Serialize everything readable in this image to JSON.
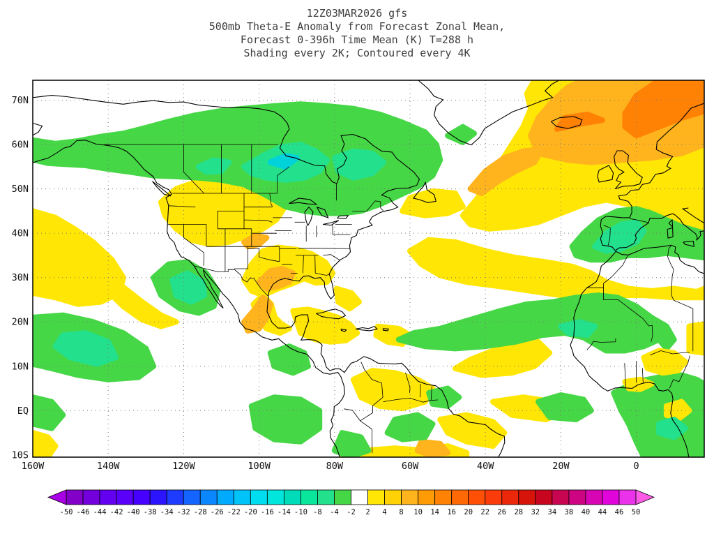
{
  "header": {
    "line1": "12Z03MAR2026 gfs",
    "line2": "500mb Theta-E Anomaly from Forecast Zonal Mean,",
    "line3": "Forecast 0-396h Time Mean (K) T=288 h",
    "line4": "Shading every 2K; Contoured every 4K"
  },
  "map": {
    "y_ticks": [
      {
        "lat": 70,
        "label": "70N"
      },
      {
        "lat": 60,
        "label": "60N"
      },
      {
        "lat": 50,
        "label": "50N"
      },
      {
        "lat": 40,
        "label": "40N"
      },
      {
        "lat": 30,
        "label": "30N"
      },
      {
        "lat": 20,
        "label": "20N"
      },
      {
        "lat": 10,
        "label": "10N"
      },
      {
        "lat": 0,
        "label": "EQ"
      },
      {
        "lat": -10,
        "label": "10S"
      }
    ],
    "x_ticks": [
      {
        "lon": -160,
        "label": "160W"
      },
      {
        "lon": -140,
        "label": "140W"
      },
      {
        "lon": -120,
        "label": "120W"
      },
      {
        "lon": -100,
        "label": "100W"
      },
      {
        "lon": -80,
        "label": "80W"
      },
      {
        "lon": -60,
        "label": "60W"
      },
      {
        "lon": -40,
        "label": "40W"
      },
      {
        "lon": -20,
        "label": "20W"
      },
      {
        "lon": 0,
        "label": "0"
      }
    ]
  },
  "map_colors": {
    "frame": "#000000",
    "grid": "#777777",
    "coast": "#000000",
    "text": "#111111",
    "title_text": "#3d3d3d"
  },
  "palette": {
    "yellow": "#ffe605",
    "orange": "#ffb41e",
    "dark_orange": "#ff8205",
    "green": "#46d746",
    "spring_green": "#23e08c",
    "cyan": "#00d2dc",
    "white": "#ffffff"
  },
  "colorbar": {
    "labels": [
      "-50",
      "-46",
      "-44",
      "-42",
      "-40",
      "-38",
      "-34",
      "-32",
      "-28",
      "-26",
      "-22",
      "-20",
      "-16",
      "-14",
      "-10",
      "-8",
      "-4",
      "-2",
      "2",
      "4",
      "8",
      "10",
      "14",
      "16",
      "20",
      "22",
      "26",
      "28",
      "32",
      "34",
      "38",
      "40",
      "44",
      "46",
      "50"
    ],
    "segment_colors": [
      "#8200c8",
      "#7300dc",
      "#6400f0",
      "#5a00fa",
      "#4600ff",
      "#2d14ff",
      "#1e3cff",
      "#1464ff",
      "#0a87ff",
      "#00aaff",
      "#00c3fa",
      "#00dcf0",
      "#00e6dc",
      "#00dcb9",
      "#0ae69b",
      "#23e08c",
      "#46d746",
      "#ffffff",
      "#ffe605",
      "#ffd205",
      "#ffb41e",
      "#ff9b05",
      "#ff8205",
      "#ff6905",
      "#ff5005",
      "#fa3c0a",
      "#eb280a",
      "#d7140a",
      "#c8051e",
      "#c80550",
      "#cd0582",
      "#d705b4",
      "#e105dc",
      "#eb32eb"
    ],
    "left_arrow_color": "#aa00e6",
    "right_arrow_color": "#ff5ae6"
  },
  "chart_data": {
    "type": "heatmap",
    "model": "gfs",
    "model_run": "12Z03MAR2026",
    "title": "500mb Theta-E Anomaly from Forecast Zonal Mean",
    "subtitle": "Forecast 0-396h Time Mean (K) T=288 h",
    "shading_note": "Shading every 2K; Contoured every 4K",
    "units": "K",
    "x_axis": {
      "label_type": "longitude",
      "range": [
        -160,
        18
      ],
      "ticks": [
        -160,
        -140,
        -120,
        -100,
        -80,
        -60,
        -40,
        -20,
        0
      ],
      "tick_labels": [
        "160W",
        "140W",
        "120W",
        "100W",
        "80W",
        "60W",
        "40W",
        "20W",
        "0"
      ],
      "grid": "dotted"
    },
    "y_axis": {
      "label_type": "latitude",
      "range": [
        -10.5,
        74.5
      ],
      "ticks": [
        70,
        60,
        50,
        40,
        30,
        20,
        10,
        0,
        -10
      ],
      "tick_labels": [
        "70N",
        "60N",
        "50N",
        "40N",
        "30N",
        "20N",
        "10N",
        "EQ",
        "10S"
      ],
      "grid": "dotted"
    },
    "colorbar_levels": [
      -50,
      -46,
      -44,
      -42,
      -40,
      -38,
      -34,
      -32,
      -28,
      -26,
      -22,
      -20,
      -16,
      -14,
      -10,
      -8,
      -4,
      -2,
      2,
      4,
      8,
      10,
      14,
      16,
      20,
      22,
      26,
      28,
      32,
      34,
      38,
      40,
      44,
      46,
      50
    ],
    "legend_position": "bottom",
    "anomaly_regions": [
      {
        "sign": "positive",
        "location": "North Pacific 24-45N west of 128W",
        "approx_peak_K": 4
      },
      {
        "sign": "positive",
        "location": "Western US plains and northern Rockies 37-51N",
        "approx_peak_K": 6
      },
      {
        "sign": "positive",
        "location": "Texas, Gulf Coast and central Mexico",
        "approx_peak_K": 10
      },
      {
        "sign": "positive",
        "location": "Yucatan, Cuba and western Caribbean",
        "approx_peak_K": 4
      },
      {
        "sign": "positive",
        "location": "Subtropical Atlantic into North Africa 27-37N",
        "approx_peak_K": 4
      },
      {
        "sign": "positive",
        "location": "North Atlantic into Europe and Scandinavia 41-75N",
        "approx_peak_K": 14
      },
      {
        "sign": "positive",
        "location": "Northern South America and NE Brazil",
        "approx_peak_K": 6
      },
      {
        "sign": "negative",
        "location": "Central and eastern Canada, Hudson Bay 45-68N",
        "approx_peak_K": -12
      },
      {
        "sign": "negative",
        "location": "Off Baja California near 28N 119W",
        "approx_peak_K": -10
      },
      {
        "sign": "negative",
        "location": "Tropical NE Pacific 7-21N west of 128W",
        "approx_peak_K": -8
      },
      {
        "sign": "negative",
        "location": "Tropical Atlantic tongue 14-26N into West Africa",
        "approx_peak_K": -8
      },
      {
        "sign": "negative",
        "location": "Iberia and western Mediterranean",
        "approx_peak_K": -10
      },
      {
        "sign": "negative",
        "location": "Equatorial Africa and Gulf of Guinea",
        "approx_peak_K": -8
      },
      {
        "sign": "negative",
        "location": "Equatorial east Pacific near Galapagos",
        "approx_peak_K": -6
      }
    ]
  }
}
